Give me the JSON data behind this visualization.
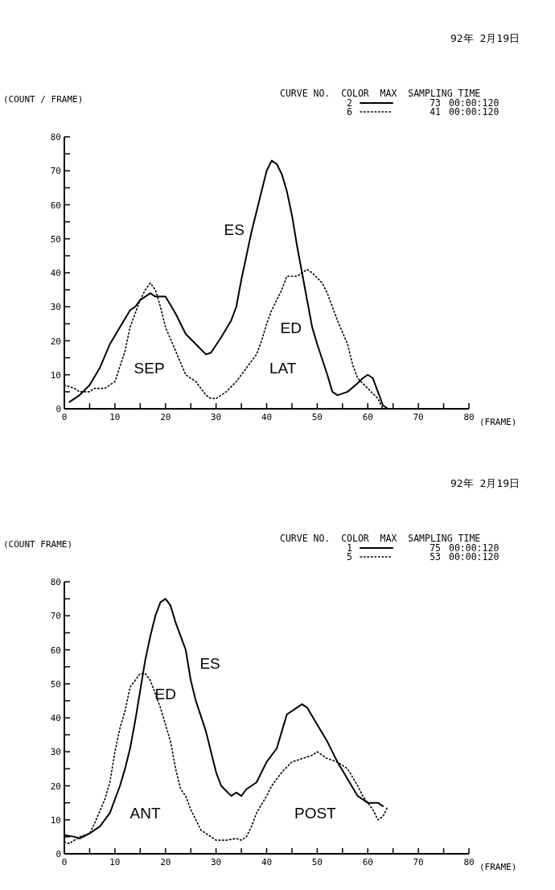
{
  "chart_data": [
    {
      "type": "line",
      "title": "92年 2月19日",
      "xlabel": "(FRAME)",
      "ylabel": "(COUNT / FRAME)",
      "legend_title": "CURVE NO.  COLOR  MAX  SAMPLING TIME",
      "legend": "top right",
      "grid": false,
      "xlim": [
        0,
        80
      ],
      "ylim": [
        0,
        80
      ],
      "xticks": [
        0,
        {
          "value": 5,
          "label": null
        },
        10,
        {
          "value": 15,
          "label": null
        },
        20,
        {
          "value": 25,
          "label": null
        },
        30,
        {
          "value": 35,
          "label": null
        },
        40,
        {
          "value": 45,
          "label": null
        },
        50,
        {
          "value": 55,
          "label": null
        },
        60,
        {
          "value": 65,
          "label": null
        },
        70,
        {
          "value": 75,
          "label": null
        },
        80
      ],
      "yticks": [
        0,
        {
          "value": 5,
          "label": null
        },
        10,
        {
          "value": 15,
          "label": null
        },
        20,
        {
          "value": 25,
          "label": null
        },
        30,
        {
          "value": 35,
          "label": null
        },
        40,
        {
          "value": 45,
          "label": null
        },
        50,
        {
          "value": 55,
          "label": null
        },
        60,
        {
          "value": 65,
          "label": null
        },
        70,
        {
          "value": 75,
          "label": null
        },
        80
      ],
      "series": [
        {
          "name": "2",
          "color": "#000000",
          "line_style": "solid",
          "x": [
            1,
            3,
            5,
            7,
            9,
            11,
            13,
            14,
            15,
            17,
            18,
            20,
            22,
            24,
            26,
            28,
            29,
            31,
            33,
            34,
            35,
            36,
            37,
            38,
            39,
            40,
            41,
            42,
            43,
            44,
            45,
            46,
            47,
            48,
            49,
            50,
            52,
            53,
            54,
            56,
            58,
            59,
            60,
            61,
            62,
            63,
            64
          ],
          "values": [
            2,
            4,
            7,
            12,
            19,
            24,
            29,
            30,
            32,
            34,
            33,
            33,
            28,
            22,
            19,
            16,
            16.5,
            21,
            26,
            30,
            38,
            45,
            52,
            58,
            64,
            70,
            73,
            72,
            69,
            64,
            57,
            48,
            40,
            32,
            24,
            19,
            10,
            5,
            4,
            5,
            7.5,
            9,
            10,
            9,
            5,
            1,
            0
          ]
        },
        {
          "name": "6",
          "color": "#000000",
          "line_style": "dotted",
          "x": [
            0,
            2,
            3,
            5,
            6,
            8,
            10,
            12,
            13,
            14,
            15,
            16,
            17,
            18,
            19,
            20,
            22,
            24,
            26,
            28,
            29,
            30,
            32,
            34,
            36,
            38,
            39,
            40,
            41,
            43,
            44,
            46,
            47,
            48,
            49,
            51,
            52,
            54,
            56,
            57,
            58,
            59,
            60,
            62,
            63
          ],
          "values": [
            7,
            6,
            5,
            5,
            6,
            6,
            8,
            17,
            24,
            28,
            32,
            35,
            37,
            35,
            30,
            24,
            17,
            10,
            8,
            4,
            3,
            3,
            5,
            8,
            12,
            16,
            20,
            25,
            29,
            35,
            39,
            39,
            40,
            41,
            40,
            37,
            34,
            26,
            19,
            13,
            9,
            7.5,
            6,
            3,
            0
          ]
        }
      ],
      "annotations": [
        "73",
        "00:00:120",
        "41",
        "00:00:120",
        "ES",
        "ED",
        "SEP",
        "LAT"
      ]
    },
    {
      "type": "line",
      "title": "92年 2月19日",
      "xlabel": "(FRAME)",
      "ylabel": "(COUNT   FRAME)",
      "legend_title": "CURVE NO.  COLOR  MAX  SAMPLING TIME",
      "legend": "top right",
      "grid": false,
      "xlim": [
        0,
        80
      ],
      "ylim": [
        0,
        80
      ],
      "xticks": [
        0,
        {
          "value": 5,
          "label": null
        },
        10,
        {
          "value": 15,
          "label": null
        },
        20,
        {
          "value": 25,
          "label": null
        },
        30,
        {
          "value": 35,
          "label": null
        },
        40,
        {
          "value": 45,
          "label": null
        },
        50,
        {
          "value": 55,
          "label": null
        },
        60,
        {
          "value": 65,
          "label": null
        },
        70,
        {
          "value": 75,
          "label": null
        },
        80
      ],
      "yticks": [
        0,
        {
          "value": 5,
          "label": null
        },
        10,
        {
          "value": 15,
          "label": null
        },
        20,
        {
          "value": 25,
          "label": null
        },
        30,
        {
          "value": 35,
          "label": null
        },
        40,
        {
          "value": 45,
          "label": null
        },
        50,
        {
          "value": 55,
          "label": null
        },
        60,
        {
          "value": 65,
          "label": null
        },
        70,
        {
          "value": 75,
          "label": null
        },
        80
      ],
      "series": [
        {
          "name": "1",
          "color": "#000000",
          "line_style": "solid",
          "x": [
            0,
            2,
            3,
            5,
            7,
            9,
            10,
            11,
            12,
            13,
            14,
            15,
            16,
            17,
            18,
            19,
            20,
            21,
            22,
            23,
            24,
            25,
            26,
            28,
            29,
            30,
            31,
            33,
            34,
            35,
            36,
            38,
            40,
            42,
            43,
            44,
            46,
            47,
            48,
            50,
            52,
            54,
            56,
            58,
            60,
            62,
            63
          ],
          "values": [
            5.5,
            5,
            4.5,
            6,
            8,
            12,
            16,
            20,
            25,
            31,
            39,
            48,
            57,
            64,
            70,
            74,
            75,
            73,
            68,
            64,
            60,
            51,
            45,
            36,
            30,
            24,
            20,
            17,
            18,
            17,
            19,
            21,
            27,
            31,
            36,
            41,
            43,
            44,
            43,
            38,
            33,
            27,
            22,
            17,
            15,
            15,
            14
          ]
        },
        {
          "name": "5",
          "color": "#000000",
          "line_style": "dotted",
          "x": [
            0,
            1,
            3,
            5,
            6,
            8,
            9,
            10,
            11,
            12,
            13,
            14,
            15,
            16,
            17,
            18,
            19,
            21,
            22,
            23,
            24,
            25,
            26,
            27,
            28,
            30,
            32,
            34,
            35,
            36,
            37,
            38,
            40,
            41,
            43,
            45,
            47,
            49,
            50,
            51,
            52,
            54,
            56,
            58,
            59,
            61,
            62,
            63,
            64
          ],
          "values": [
            3.5,
            3,
            5,
            6,
            9,
            16,
            21,
            30,
            37,
            42,
            49,
            51,
            53,
            53,
            51,
            47,
            43,
            33,
            25,
            19,
            17,
            13,
            10,
            7,
            6,
            4,
            4,
            4.5,
            4,
            5,
            8,
            12,
            17,
            20,
            24,
            27,
            28,
            29,
            30,
            29,
            28,
            27,
            25,
            20,
            17,
            13,
            10,
            11,
            14
          ]
        }
      ],
      "annotations": [
        "75",
        "00:00:120",
        "53",
        "00:00:120",
        "ES",
        "ED",
        "ANT",
        "POST"
      ]
    }
  ]
}
